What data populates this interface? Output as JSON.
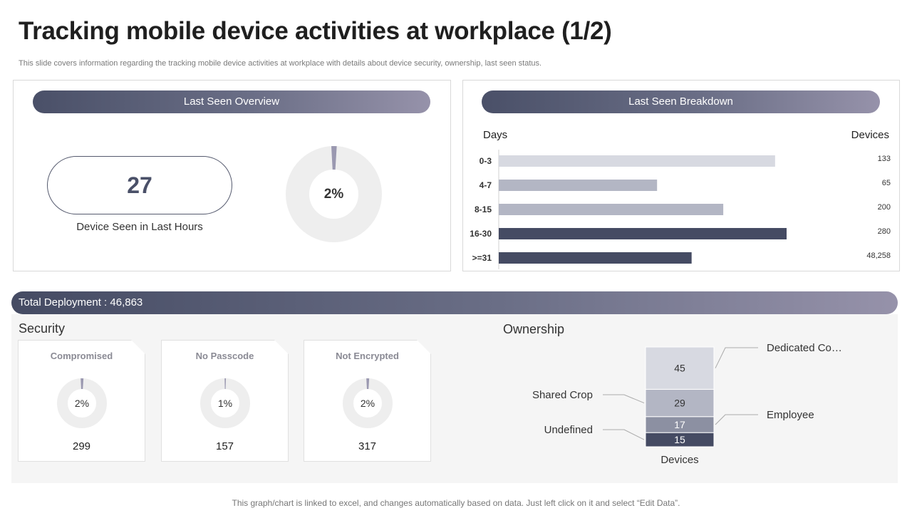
{
  "header": {
    "title": "Tracking mobile device activities at workplace (1/2)",
    "subtitle": "This slide covers information regarding the tracking mobile device activities at workplace with details about device security, ownership, last seen status."
  },
  "last_seen_overview": {
    "header": "Last Seen Overview",
    "kpi_value": "27",
    "kpi_caption": "Device Seen in Last Hours",
    "donut_label": "2%",
    "donut_percent": 2
  },
  "last_seen_breakdown": {
    "header": "Last Seen Breakdown",
    "days_label": "Days",
    "devices_label": "Devices"
  },
  "deployment": {
    "label": "Total Deployment : 46,863"
  },
  "security": {
    "label": "Security",
    "cards": [
      {
        "title": "Compromised",
        "percent_label": "2%",
        "percent": 2,
        "value": "299"
      },
      {
        "title": "No Passcode",
        "percent_label": "1%",
        "percent": 1,
        "value": "157"
      },
      {
        "title": "Not Encrypted",
        "percent_label": "2%",
        "percent": 2,
        "value": "317"
      }
    ]
  },
  "ownership": {
    "label": "Ownership"
  },
  "footer": {
    "note": "This graph/chart is linked to excel, and changes automatically based on data. Just left click on it and select “Edit Data”."
  },
  "colors": {
    "dark": "#454b63",
    "mid": "#b3b6c4",
    "light": "#d7d9e1",
    "slate": "#8c90a2",
    "donut_track": "#eeeeee",
    "donut_mark": "#9a98b0"
  },
  "chart_data": [
    {
      "type": "bar",
      "orientation": "horizontal",
      "title": "Last Seen Breakdown",
      "xlabel": "Devices",
      "ylabel": "Days",
      "categories": [
        "0-3",
        "4-7",
        "8-15",
        "16-30",
        ">=31"
      ],
      "values": [
        133,
        65,
        200,
        280,
        48258
      ],
      "value_labels": [
        "133",
        "65",
        "200",
        "280",
        "48,258"
      ]
    },
    {
      "type": "bar",
      "stacked": true,
      "title": "Ownership",
      "xlabel": "Devices",
      "categories": [
        "Devices"
      ],
      "series": [
        {
          "name": "Undefined",
          "values": [
            15
          ]
        },
        {
          "name": "Employee",
          "values": [
            17
          ]
        },
        {
          "name": "Shared Crop",
          "values": [
            29
          ]
        },
        {
          "name": "Dedicated Co…",
          "values": [
            45
          ]
        }
      ]
    }
  ]
}
